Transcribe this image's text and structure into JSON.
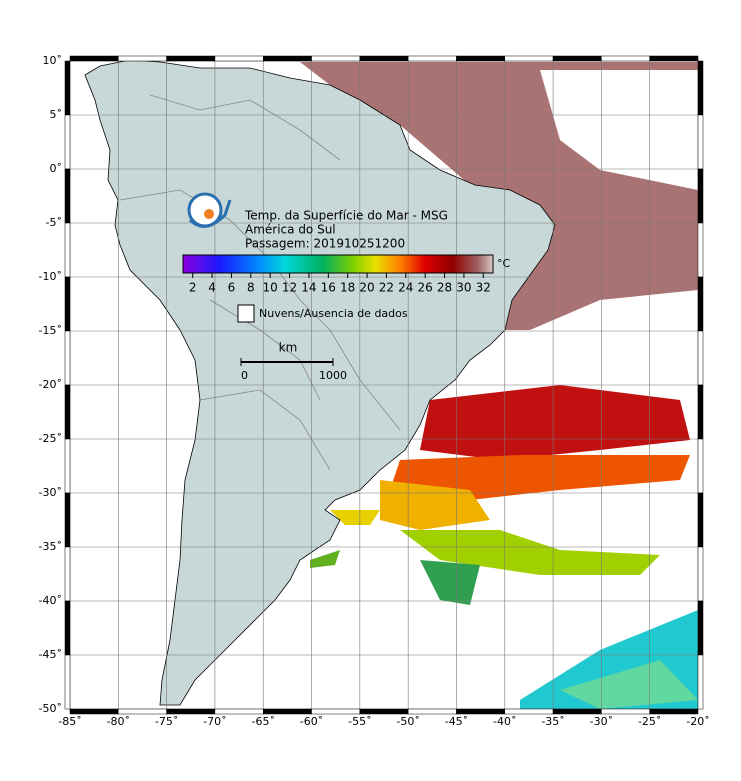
{
  "map": {
    "lon_ticks": [
      {
        "value": -85,
        "label": "-85˚"
      },
      {
        "value": -80,
        "label": "-80˚"
      },
      {
        "value": -75,
        "label": "-75˚"
      },
      {
        "value": -70,
        "label": "-70˚"
      },
      {
        "value": -65,
        "label": "-65˚"
      },
      {
        "value": -60,
        "label": "-60˚"
      },
      {
        "value": -55,
        "label": "-55˚"
      },
      {
        "value": -50,
        "label": "-50˚"
      },
      {
        "value": -45,
        "label": "-45˚"
      },
      {
        "value": -40,
        "label": "-40˚"
      },
      {
        "value": -35,
        "label": "-35˚"
      },
      {
        "value": -30,
        "label": "-30˚"
      },
      {
        "value": -25,
        "label": "-25˚"
      },
      {
        "value": -20,
        "label": "-20˚"
      }
    ],
    "lat_ticks": [
      {
        "value": 10,
        "label": "10˚"
      },
      {
        "value": 5,
        "label": "5˚"
      },
      {
        "value": 0,
        "label": "0˚"
      },
      {
        "value": -5,
        "label": "-5˚"
      },
      {
        "value": -10,
        "label": "-10˚"
      },
      {
        "value": -15,
        "label": "-15˚"
      },
      {
        "value": -20,
        "label": "-20˚"
      },
      {
        "value": -25,
        "label": "-25˚"
      },
      {
        "value": -30,
        "label": "-30˚"
      },
      {
        "value": -35,
        "label": "-35˚"
      },
      {
        "value": -40,
        "label": "-40˚"
      },
      {
        "value": -45,
        "label": "-45˚"
      },
      {
        "value": -50,
        "label": "-50˚"
      }
    ],
    "lonlim": [
      -85,
      -20
    ],
    "latlim": [
      -50,
      10
    ],
    "title_lines": [
      "Temp. da Superfície do Mar - MSG",
      "América do Sul",
      "Passagem: 201910251200"
    ],
    "colorbar": {
      "lim": [
        1,
        33
      ],
      "ticks": [
        2,
        4,
        6,
        8,
        10,
        12,
        14,
        16,
        18,
        20,
        22,
        24,
        26,
        28,
        30,
        32
      ],
      "unit": "°C"
    },
    "legend": "Nuvens/Ausencia de dados",
    "scale": {
      "unit": "km",
      "ticks": [
        0,
        1000
      ]
    }
  }
}
